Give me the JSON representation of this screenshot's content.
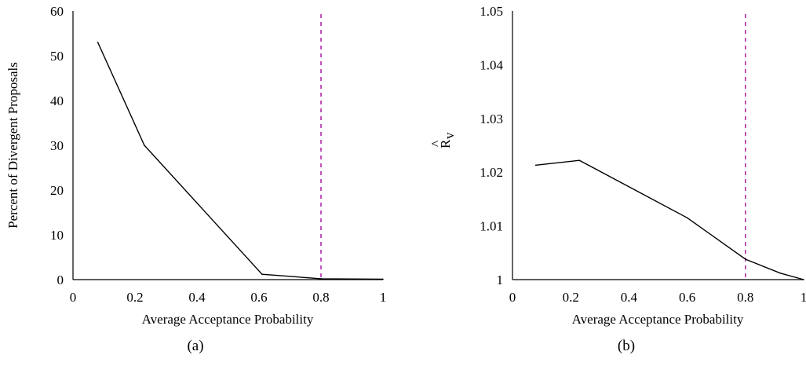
{
  "chart_data": [
    {
      "type": "line",
      "xlabel": "Average Acceptance Probability",
      "ylabel": "Percent of Divergent Proposals",
      "caption": "(a)",
      "xlim": [
        0,
        1
      ],
      "ylim": [
        0,
        60
      ],
      "x_ticks": [
        0,
        0.2,
        0.4,
        0.6,
        0.8,
        1
      ],
      "x_tick_labels": [
        "0",
        "0.2",
        "0.4",
        "0.6",
        "0.8",
        "1"
      ],
      "y_ticks": [
        0,
        10,
        20,
        30,
        40,
        50,
        60
      ],
      "y_tick_labels": [
        "0",
        "10",
        "20",
        "30",
        "40",
        "50",
        "60"
      ],
      "series": [
        {
          "x": [
            0.08,
            0.23,
            0.61,
            0.8,
            1.0
          ],
          "y": [
            53,
            30,
            1.2,
            0.2,
            0.1
          ]
        }
      ],
      "reference_line": {
        "orientation": "vertical",
        "x": 0.8,
        "color": "#b02aa6",
        "style": "dashed"
      },
      "grid": false
    },
    {
      "type": "line",
      "xlabel": "Average Acceptance Probability",
      "ylabel_main": "R",
      "ylabel_sub": "v",
      "ylabel_accent": "^",
      "caption": "(b)",
      "xlim": [
        0,
        1
      ],
      "ylim": [
        1,
        1.05
      ],
      "x_ticks": [
        0,
        0.2,
        0.4,
        0.6,
        0.8,
        1
      ],
      "x_tick_labels": [
        "0",
        "0.2",
        "0.4",
        "0.6",
        "0.8",
        "1"
      ],
      "y_ticks": [
        1,
        1.01,
        1.02,
        1.03,
        1.04,
        1.05
      ],
      "y_tick_labels": [
        "1",
        "1.01",
        "1.02",
        "1.03",
        "1.04",
        "1.05"
      ],
      "series": [
        {
          "x": [
            0.08,
            0.23,
            0.6,
            0.8,
            0.92,
            1.0
          ],
          "y": [
            1.0213,
            1.0222,
            1.0115,
            1.0038,
            1.0012,
            1.0
          ]
        }
      ],
      "reference_line": {
        "orientation": "vertical",
        "x": 0.8,
        "color": "#b02aa6",
        "style": "dashed"
      },
      "grid": false
    }
  ]
}
